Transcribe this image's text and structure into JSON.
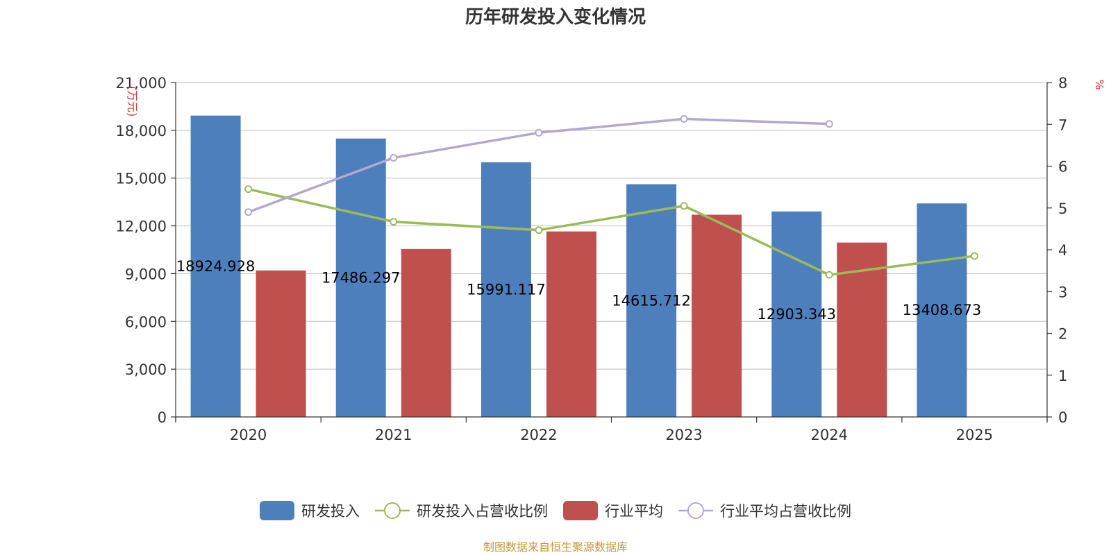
{
  "chart_data": {
    "type": "bar",
    "title": "历年研发投入变化情况",
    "categories": [
      "2020",
      "2021",
      "2022",
      "2023",
      "2024",
      "2025"
    ],
    "left_axis": {
      "unit": "(万元)",
      "ylim": [
        0,
        21000
      ],
      "ticks": [
        0,
        3000,
        6000,
        9000,
        12000,
        15000,
        18000,
        21000
      ],
      "tick_labels": [
        "0",
        "3,000",
        "6,000",
        "9,000",
        "12,000",
        "15,000",
        "18,000",
        "21,000"
      ]
    },
    "right_axis": {
      "unit": "%",
      "ylim": [
        0,
        8
      ],
      "ticks": [
        0,
        1,
        2,
        3,
        4,
        5,
        6,
        7,
        8
      ],
      "tick_labels": [
        "0",
        "1",
        "2",
        "3",
        "4",
        "5",
        "6",
        "7",
        "8"
      ]
    },
    "grid": true,
    "legend_position": "bottom",
    "series": [
      {
        "name": "研发投入",
        "kind": "bar",
        "axis": "left",
        "color": "#4e7fbd",
        "values": [
          18924.928,
          17486.297,
          15991.117,
          14615.712,
          12903.343,
          13408.673
        ],
        "data_labels": [
          "18924.928",
          "17486.297",
          "15991.117",
          "14615.712",
          "12903.343",
          "13408.673"
        ]
      },
      {
        "name": "研发投入占营收比例",
        "kind": "line",
        "axis": "right",
        "color": "#9bbb59",
        "values": [
          5.45,
          4.67,
          4.47,
          5.05,
          3.4,
          3.85
        ]
      },
      {
        "name": "行业平均",
        "kind": "bar",
        "axis": "left",
        "color": "#c0504d",
        "values": [
          9200,
          10550,
          11650,
          12700,
          10950,
          null
        ]
      },
      {
        "name": "行业平均占营收比例",
        "kind": "line",
        "axis": "right",
        "color": "#b3a8d0",
        "values": [
          4.9,
          6.2,
          6.8,
          7.13,
          7.01,
          null
        ]
      }
    ],
    "source": "制图数据来自恒生聚源数据库"
  }
}
